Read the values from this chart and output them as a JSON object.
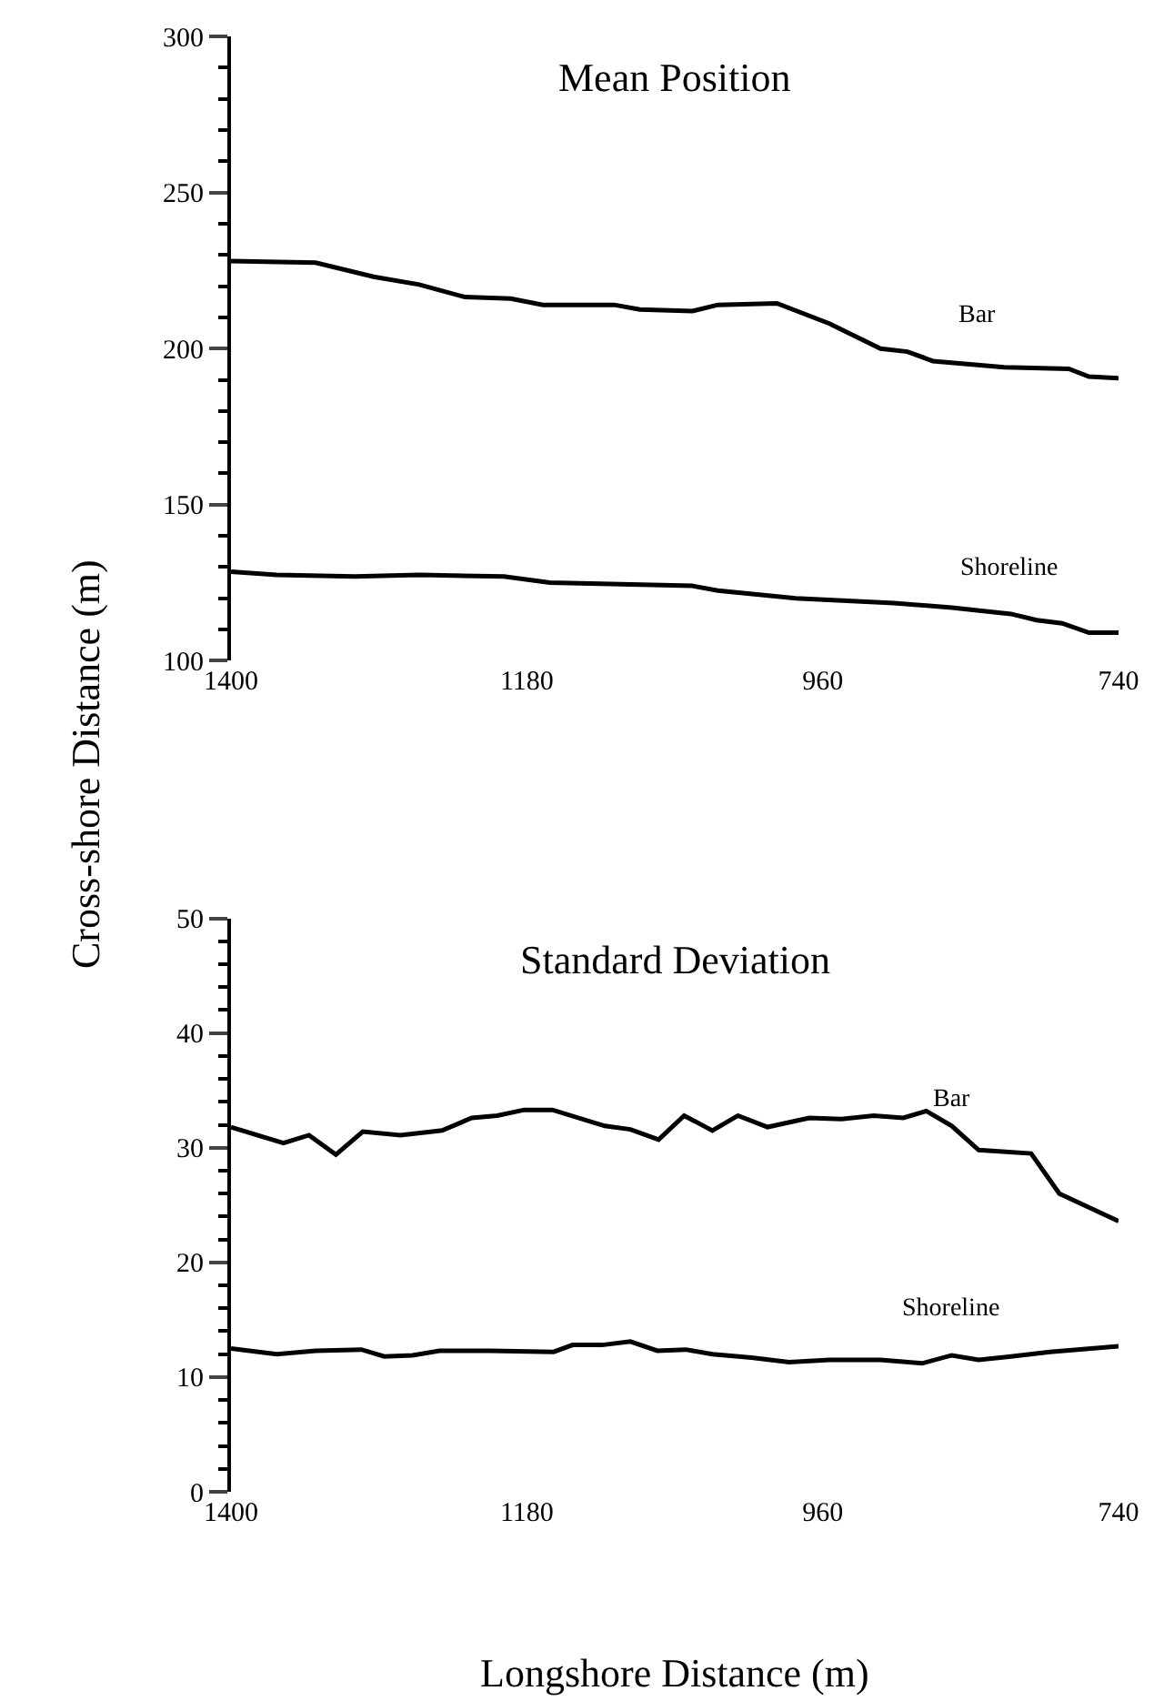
{
  "chart_data": [
    {
      "type": "line",
      "title": "Mean Position",
      "ylabel": "Cross-shore Distance (m)",
      "xlim": [
        1400,
        740
      ],
      "xticks": [
        1400,
        1180,
        960,
        740
      ],
      "ylim": [
        100,
        300
      ],
      "yticks": [
        100,
        150,
        200,
        250,
        300
      ],
      "legend": false,
      "marker": "none",
      "line_style": "solid",
      "series": [
        {
          "name": "Bar",
          "color": "#000000",
          "x": [
            1400,
            1337,
            1294,
            1260,
            1226,
            1192,
            1168,
            1115,
            1096,
            1057,
            1038,
            994,
            955,
            917,
            897,
            878,
            825,
            777,
            762,
            740
          ],
          "values": [
            228,
            227.5,
            223,
            220.5,
            216.5,
            216,
            214,
            214,
            212.5,
            212,
            214,
            214.5,
            208,
            200,
            199,
            196,
            194,
            193.5,
            191,
            190.5
          ]
        },
        {
          "name": "Shoreline",
          "color": "#000000",
          "x": [
            1400,
            1366,
            1308,
            1260,
            1197,
            1163,
            1057,
            1038,
            980,
            907,
            864,
            820,
            801,
            782,
            762,
            740
          ],
          "values": [
            128.5,
            127.5,
            127,
            127.5,
            127,
            125,
            124,
            122.5,
            120,
            118.5,
            117,
            115,
            113,
            112,
            109,
            109
          ]
        }
      ]
    },
    {
      "type": "line",
      "title": "Standard Deviation",
      "xlabel": "Longshore Distance (m)",
      "xlim": [
        1400,
        740
      ],
      "xticks": [
        1400,
        1180,
        960,
        740
      ],
      "ylim": [
        0,
        50
      ],
      "yticks": [
        0,
        10,
        20,
        30,
        40,
        50
      ],
      "legend": false,
      "marker": "none",
      "line_style": "solid",
      "series": [
        {
          "name": "Bar",
          "color": "#000000",
          "x": [
            1400,
            1361,
            1342,
            1322,
            1302,
            1274,
            1243,
            1221,
            1202,
            1182,
            1161,
            1122,
            1103,
            1082,
            1063,
            1042,
            1023,
            1001,
            970,
            946,
            922,
            900,
            883,
            864,
            844,
            805,
            784,
            740
          ],
          "values": [
            31.8,
            30.4,
            31.1,
            29.4,
            31.4,
            31.1,
            31.5,
            32.6,
            32.8,
            33.3,
            33.3,
            31.9,
            31.6,
            30.7,
            32.8,
            31.5,
            32.8,
            31.8,
            32.6,
            32.5,
            32.8,
            32.6,
            33.2,
            31.9,
            29.8,
            29.5,
            26.0,
            23.6
          ]
        },
        {
          "name": "Shoreline",
          "color": "#000000",
          "x": [
            1400,
            1366,
            1337,
            1303,
            1286,
            1265,
            1245,
            1207,
            1160,
            1146,
            1124,
            1103,
            1083,
            1062,
            1042,
            1013,
            985,
            955,
            917,
            886,
            864,
            844,
            820,
            791,
            740
          ],
          "values": [
            12.5,
            12.0,
            12.3,
            12.4,
            11.8,
            11.9,
            12.3,
            12.3,
            12.2,
            12.8,
            12.8,
            13.1,
            12.3,
            12.4,
            12.0,
            11.7,
            11.3,
            11.5,
            11.5,
            11.2,
            11.9,
            11.5,
            11.8,
            12.2,
            12.7
          ]
        }
      ]
    }
  ]
}
